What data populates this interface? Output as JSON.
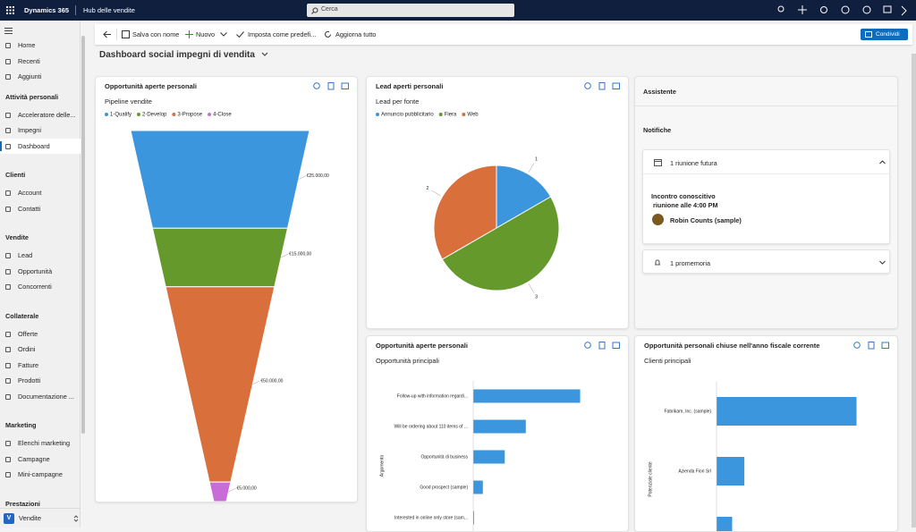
{
  "topbar": {
    "brand": "Dynamics 365",
    "app": "Hub delle vendite",
    "search": "Cerca"
  },
  "nav": {
    "top": [
      "Home",
      "Recenti",
      "Aggiunti"
    ],
    "groups": [
      {
        "title": "Attività personali",
        "items": [
          "Acceleratore delle...",
          "Impegni",
          "Dashboard"
        ]
      },
      {
        "title": "Clienti",
        "items": [
          "Account",
          "Contatti"
        ]
      },
      {
        "title": "Vendite",
        "items": [
          "Lead",
          "Opportunità",
          "Concorrenti"
        ]
      },
      {
        "title": "Collaterale",
        "items": [
          "Offerte",
          "Ordini",
          "Fatture",
          "Prodotti",
          "Documentazione ..."
        ]
      },
      {
        "title": "Marketing",
        "items": [
          "Elenchi marketing",
          "Campagne",
          "Mini-campagne"
        ]
      },
      {
        "title": "Prestazioni"
      }
    ],
    "area_badge": "V",
    "area": "Vendite"
  },
  "commands": [
    "Salva con nome",
    "Nuovo",
    "Imposta come predefi...",
    "Aggiorna tutto"
  ],
  "share": "Condividi",
  "dashboard_title": "Dashboard social impegni di vendita",
  "assistant": {
    "title": "Assistente",
    "section": "Notifiche",
    "cards": [
      {
        "title": "1 riunione futura",
        "subject": "Incontro conoscitivo",
        "time": "riunione alle 4:00 PM",
        "contact": "Robin Counts (sample)"
      },
      {
        "title": "1 promemoria"
      }
    ]
  },
  "chart_data": [
    {
      "type": "funnel",
      "title": "Opportunità aperte personali",
      "subtitle": "Pipeline vendite",
      "categories": [
        "1-Qualify",
        "2-Develop",
        "3-Propose",
        "4-Close"
      ],
      "values": [
        25000,
        15000,
        50000,
        5000
      ],
      "value_labels": [
        "€25.000,00",
        "€15.000,00",
        "€50.000,00",
        "€5.000,00"
      ],
      "colors": [
        "#3c96dd",
        "#65992b",
        "#d9703b",
        "#c86dd7"
      ]
    },
    {
      "type": "pie",
      "title": "Lead aperti personali",
      "subtitle": "Lead per fonte",
      "categories": [
        "Annuncio pubblicitario",
        "Fiera",
        "Web"
      ],
      "values": [
        1,
        3,
        2
      ],
      "colors": [
        "#3c96dd",
        "#65992b",
        "#d9703b"
      ]
    },
    {
      "type": "bar",
      "orientation": "horizontal",
      "title": "Opportunità aperte personali",
      "subtitle": "Opportunità principali",
      "y_label": "Argomento",
      "categories": [
        "Follow-up with information regardi...",
        "Will be ordering about 110 items of ...",
        "Opportunità di business",
        "Good prospect (sample)",
        "Interested in online only store (sam..."
      ],
      "values": [
        122,
        60,
        36,
        11,
        1
      ],
      "xlim": [
        0,
        150
      ],
      "color": "#3c96dd"
    },
    {
      "type": "bar",
      "orientation": "horizontal",
      "title": "Opportunità personali chiuse nell'anno fiscale corrente",
      "subtitle": "Clienti principali",
      "y_label": "Potenziale cliente",
      "categories": [
        "Fabrikam, Inc. (sample)",
        "Azienda Fiori Srl",
        null
      ],
      "values": [
        161,
        32,
        18
      ],
      "xlim": [
        0,
        180
      ],
      "color": "#3c96dd"
    }
  ]
}
